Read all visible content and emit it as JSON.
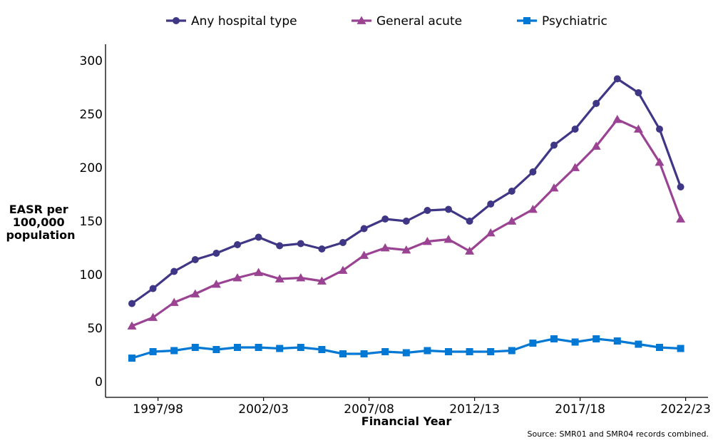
{
  "chart_data": {
    "type": "line",
    "title": "",
    "xlabel": "Financial Year",
    "ylabel": "EASR per 100,000 population",
    "ylim": [
      0,
      300
    ],
    "yticks": [
      0,
      50,
      100,
      150,
      200,
      250,
      300
    ],
    "x_tick_labels": [
      "1997/98",
      "2002/03",
      "2007/08",
      "2012/13",
      "2017/18",
      "2022/23"
    ],
    "x": [
      "1996/97",
      "1997/98",
      "1998/99",
      "1999/00",
      "2000/01",
      "2001/02",
      "2002/03",
      "2003/04",
      "2004/05",
      "2005/06",
      "2006/07",
      "2007/08",
      "2008/09",
      "2009/10",
      "2010/11",
      "2011/12",
      "2012/13",
      "2013/14",
      "2014/15",
      "2015/16",
      "2016/17",
      "2017/18",
      "2018/19",
      "2019/20",
      "2020/21",
      "2021/22",
      "2022/23"
    ],
    "grid": false,
    "legend_position": "top",
    "source": "Source: SMR01 and SMR04 records combined.",
    "series": [
      {
        "name": "Any hospital type",
        "color": "#3f3685",
        "marker": "circle",
        "values": [
          73,
          87,
          103,
          114,
          120,
          128,
          135,
          127,
          129,
          124,
          130,
          143,
          152,
          150,
          160,
          161,
          150,
          166,
          178,
          196,
          221,
          236,
          260,
          283,
          270,
          236,
          182
        ]
      },
      {
        "name": "General acute",
        "color": "#9b4393",
        "marker": "triangle",
        "values": [
          52,
          60,
          74,
          82,
          91,
          97,
          102,
          96,
          97,
          94,
          104,
          118,
          125,
          123,
          131,
          133,
          122,
          139,
          150,
          161,
          181,
          200,
          220,
          245,
          236,
          205,
          152
        ]
      },
      {
        "name": "Psychiatric",
        "color": "#0078d4",
        "marker": "square",
        "values": [
          22,
          28,
          29,
          32,
          30,
          32,
          32,
          31,
          32,
          30,
          26,
          26,
          28,
          27,
          29,
          28,
          28,
          28,
          29,
          36,
          40,
          37,
          40,
          38,
          35,
          32,
          31
        ]
      }
    ]
  }
}
